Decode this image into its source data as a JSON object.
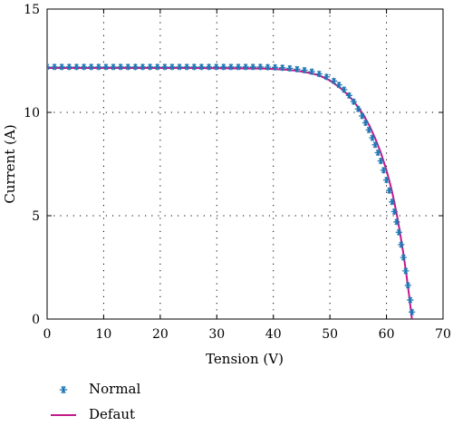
{
  "chart_data": {
    "type": "line",
    "xlabel": "Tension (V)",
    "ylabel": "Current (A)",
    "xlim": [
      0,
      70
    ],
    "ylim": [
      0,
      15
    ],
    "xticks": [
      0,
      10,
      20,
      30,
      40,
      50,
      60,
      70
    ],
    "yticks": [
      0,
      5,
      10,
      15
    ],
    "grid": "dotted",
    "legend_position": "bottom-left",
    "colors": {
      "normal": "#1f77b4",
      "defaut": "#c2188b",
      "grid": "#000000"
    },
    "series": [
      {
        "name": "Normal",
        "style": "asterisk-markers",
        "x": [
          0,
          1.3,
          2.6,
          3.9,
          5.2,
          6.5,
          7.8,
          9.1,
          10.4,
          11.7,
          13.0,
          14.3,
          15.6,
          16.9,
          18.2,
          19.5,
          20.8,
          22.1,
          23.4,
          24.7,
          26.0,
          27.3,
          28.6,
          29.9,
          31.2,
          32.5,
          33.8,
          35.1,
          36.4,
          37.7,
          39.0,
          40.3,
          41.6,
          42.9,
          44.2,
          45.5,
          46.8,
          48.1,
          49.4,
          50.7,
          51.6,
          52.5,
          53.4,
          54.2,
          55.0,
          55.7,
          56.3,
          56.9,
          57.5,
          58.0,
          58.5,
          59.0,
          59.5,
          60.0,
          60.5,
          61.0,
          61.4,
          61.8,
          62.2,
          62.6,
          63.0,
          63.4,
          63.8,
          64.2,
          64.5
        ],
        "y": [
          12.2,
          12.2,
          12.2,
          12.2,
          12.2,
          12.2,
          12.2,
          12.2,
          12.2,
          12.2,
          12.2,
          12.2,
          12.2,
          12.2,
          12.2,
          12.2,
          12.2,
          12.2,
          12.2,
          12.2,
          12.2,
          12.2,
          12.2,
          12.2,
          12.2,
          12.2,
          12.2,
          12.2,
          12.2,
          12.2,
          12.19,
          12.18,
          12.16,
          12.13,
          12.09,
          12.04,
          11.97,
          11.86,
          11.72,
          11.52,
          11.33,
          11.1,
          10.82,
          10.52,
          10.17,
          9.83,
          9.5,
          9.15,
          8.77,
          8.43,
          8.05,
          7.65,
          7.2,
          6.73,
          6.22,
          5.67,
          5.2,
          4.7,
          4.2,
          3.6,
          2.98,
          2.33,
          1.63,
          0.92,
          0.34
        ]
      },
      {
        "name": "Defaut",
        "style": "solid-line",
        "x": [
          0,
          5,
          10,
          15,
          20,
          25,
          30,
          35,
          38,
          40,
          42,
          44,
          46,
          48,
          50,
          52,
          53,
          54,
          55,
          56,
          57,
          58,
          59,
          60,
          60.5,
          61,
          61.5,
          62,
          62.5,
          63,
          63.5,
          64,
          64.5
        ],
        "y": [
          12.15,
          12.15,
          12.15,
          12.15,
          12.15,
          12.15,
          12.14,
          12.13,
          12.12,
          12.1,
          12.07,
          12.02,
          11.93,
          11.8,
          11.55,
          11.15,
          10.9,
          10.6,
          10.25,
          9.85,
          9.35,
          8.75,
          8.05,
          7.2,
          6.7,
          6.15,
          5.5,
          4.8,
          4.0,
          3.15,
          2.2,
          1.15,
          0.0
        ]
      }
    ]
  }
}
